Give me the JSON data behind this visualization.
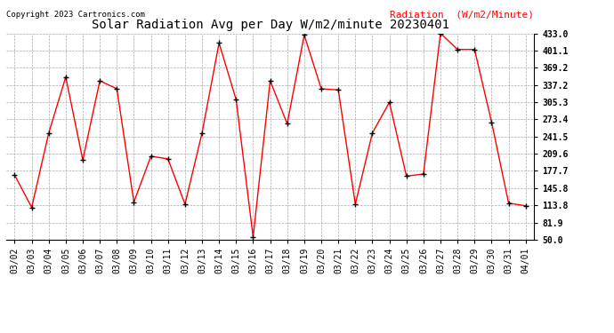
{
  "title": "Solar Radiation Avg per Day W/m2/minute 20230401",
  "copyright": "Copyright 2023 Cartronics.com",
  "legend_label": "Radiation  (W/m2/Minute)",
  "dates": [
    "03/02",
    "03/03",
    "03/04",
    "03/05",
    "03/06",
    "03/07",
    "03/08",
    "03/09",
    "03/10",
    "03/11",
    "03/12",
    "03/13",
    "03/14",
    "03/15",
    "03/16",
    "03/17",
    "03/18",
    "03/19",
    "03/20",
    "03/21",
    "03/22",
    "03/23",
    "03/24",
    "03/25",
    "03/26",
    "03/27",
    "03/28",
    "03/29",
    "03/30",
    "03/31",
    "04/01"
  ],
  "values": [
    170,
    110,
    248,
    352,
    198,
    345,
    330,
    120,
    205,
    200,
    116,
    248,
    415,
    310,
    55,
    345,
    265,
    430,
    330,
    328,
    116,
    248,
    305,
    168,
    172,
    433,
    403,
    403,
    268,
    118,
    113
  ],
  "line_color": "red",
  "marker_color": "black",
  "marker_style": "+",
  "marker_size": 5,
  "background_color": "white",
  "grid_color": "#aaaaaa",
  "title_fontsize": 10,
  "copyright_fontsize": 6.5,
  "legend_fontsize": 8,
  "tick_fontsize": 7,
  "ylim": [
    50.0,
    433.0
  ],
  "yticks": [
    50.0,
    81.9,
    113.8,
    145.8,
    177.7,
    209.6,
    241.5,
    273.4,
    305.3,
    337.2,
    369.2,
    401.1,
    433.0
  ]
}
